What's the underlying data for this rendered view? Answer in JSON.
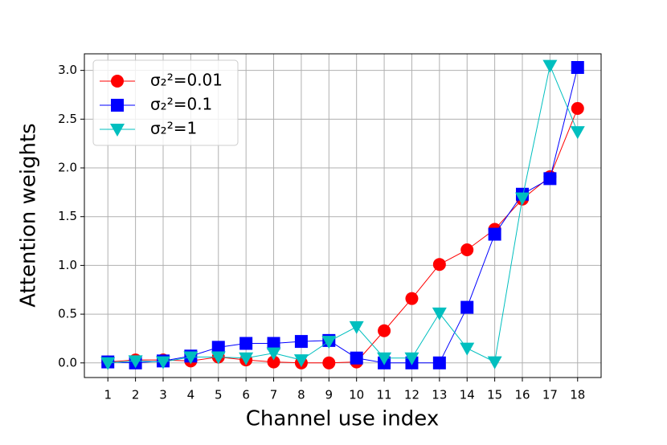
{
  "chart_data": {
    "type": "line",
    "x_label": "Channel use index",
    "y_label": "Attention weights",
    "x": [
      1,
      2,
      3,
      4,
      5,
      6,
      7,
      8,
      9,
      10,
      11,
      12,
      13,
      14,
      15,
      16,
      17,
      18
    ],
    "series": [
      {
        "name": "σ₂²=0.01",
        "color": "#ff0000",
        "marker": "circle",
        "values": [
          0.01,
          0.03,
          0.03,
          0.02,
          0.06,
          0.03,
          0.01,
          0.0,
          0.0,
          0.01,
          0.33,
          0.66,
          1.01,
          1.16,
          1.37,
          1.68,
          1.91,
          2.61
        ]
      },
      {
        "name": "σ₂²=0.1",
        "color": "#0000ff",
        "marker": "square",
        "values": [
          0.01,
          0.0,
          0.02,
          0.07,
          0.16,
          0.2,
          0.2,
          0.22,
          0.23,
          0.05,
          0.0,
          0.0,
          0.0,
          0.57,
          1.32,
          1.73,
          1.89,
          3.03
        ]
      },
      {
        "name": "σ₂²=1",
        "color": "#00bfbf",
        "marker": "triangle-down",
        "values": [
          0.0,
          0.02,
          0.01,
          0.06,
          0.06,
          0.05,
          0.1,
          0.03,
          0.22,
          0.37,
          0.05,
          0.05,
          0.51,
          0.15,
          0.01,
          1.69,
          3.05,
          2.37
        ]
      }
    ],
    "xlim": [
      0.15,
      18.85
    ],
    "ylim": [
      -0.15,
      3.17
    ],
    "xticks": [
      1,
      2,
      3,
      4,
      5,
      6,
      7,
      8,
      9,
      10,
      11,
      12,
      13,
      14,
      15,
      16,
      17,
      18
    ],
    "yticks": [
      {
        "value": 0,
        "label": "0.0"
      },
      0.5,
      {
        "value": 1,
        "label": "1.0"
      },
      1.5,
      {
        "value": 2,
        "label": "2.0"
      },
      2.5,
      {
        "value": 3,
        "label": "3.0"
      }
    ],
    "grid": true,
    "legend": "upper left"
  }
}
